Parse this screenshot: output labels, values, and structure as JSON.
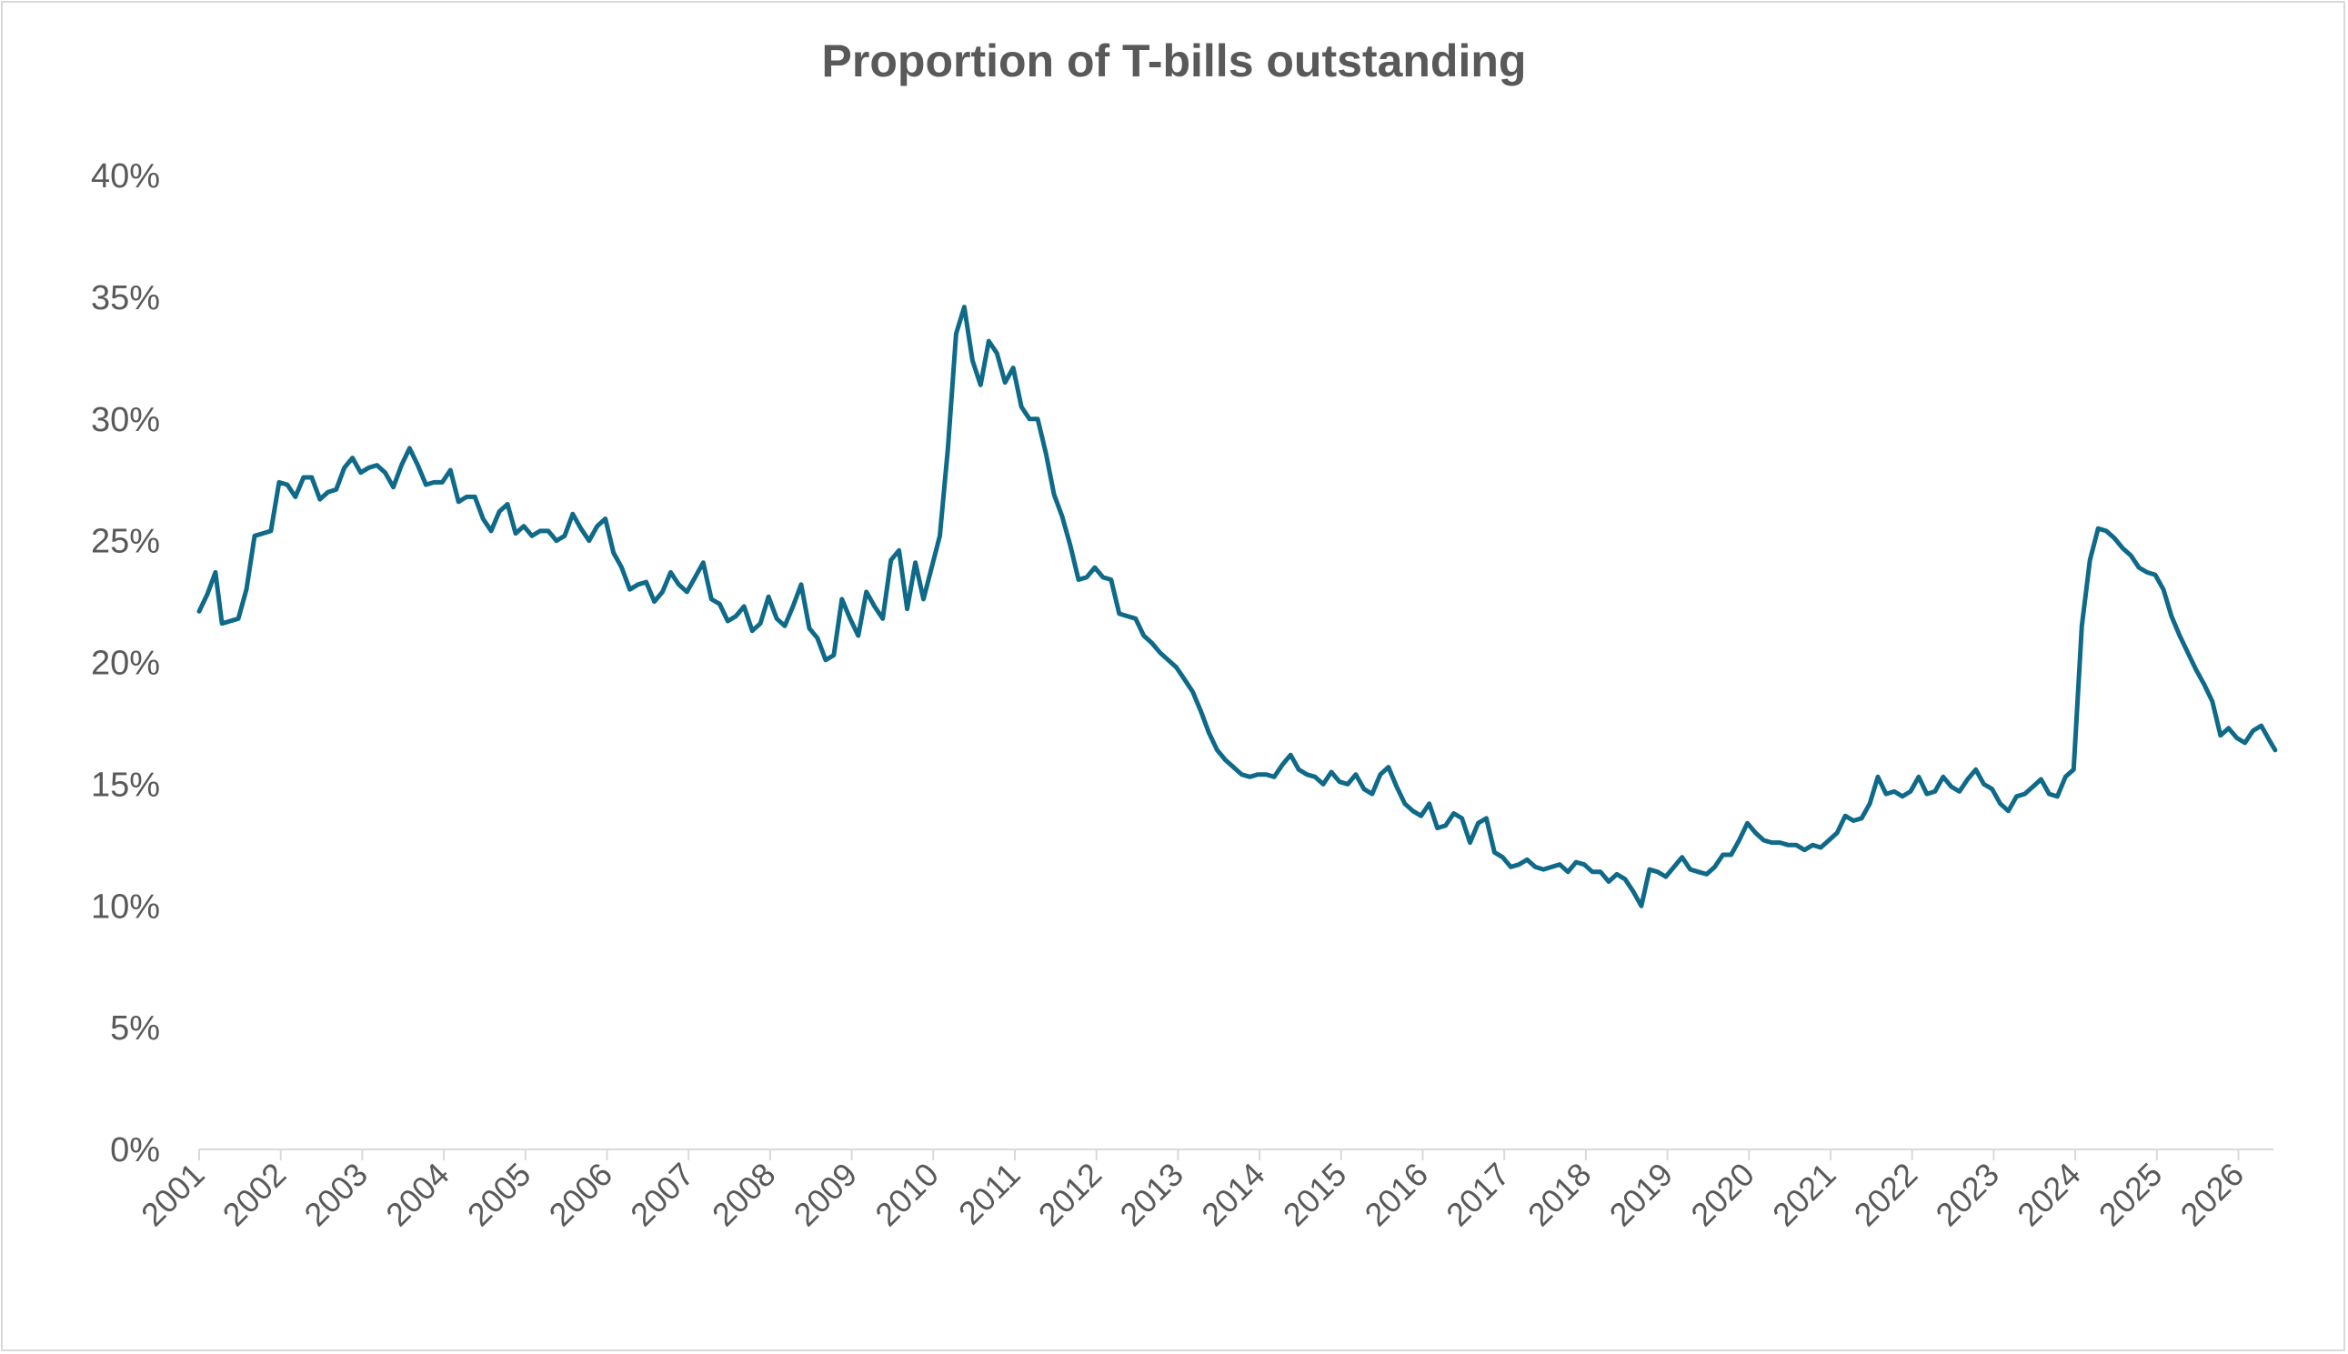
{
  "chart_data": {
    "type": "line",
    "title": "Proportion of T-bills outstanding",
    "xlabel": "",
    "ylabel": "",
    "ylim": [
      0,
      40
    ],
    "xlim": [
      2001.0,
      2026.45
    ],
    "y_ticks": [
      "0%",
      "5%",
      "10%",
      "15%",
      "20%",
      "25%",
      "30%",
      "35%",
      "40%"
    ],
    "x_ticks": [
      "2001",
      "2002",
      "2003",
      "2004",
      "2005",
      "2006",
      "2007",
      "2008",
      "2009",
      "2010",
      "2011",
      "2012",
      "2013",
      "2014",
      "2015",
      "2016",
      "2017",
      "2018",
      "2019",
      "2020",
      "2021",
      "2022",
      "2023",
      "2024",
      "2025",
      "2026"
    ],
    "grid": false,
    "legend": "none",
    "series": [
      {
        "color": "#0e6a88",
        "points": [
          [
            2001.0,
            22.1
          ],
          [
            2001.1,
            22.8
          ],
          [
            2001.2,
            23.7
          ],
          [
            2001.28,
            21.6
          ],
          [
            2001.38,
            21.7
          ],
          [
            2001.48,
            21.8
          ],
          [
            2001.58,
            23.0
          ],
          [
            2001.68,
            25.2
          ],
          [
            2001.78,
            25.3
          ],
          [
            2001.88,
            25.4
          ],
          [
            2001.98,
            27.4
          ],
          [
            2002.08,
            27.3
          ],
          [
            2002.18,
            26.8
          ],
          [
            2002.28,
            27.6
          ],
          [
            2002.38,
            27.6
          ],
          [
            2002.48,
            26.7
          ],
          [
            2002.58,
            27.0
          ],
          [
            2002.68,
            27.1
          ],
          [
            2002.78,
            28.0
          ],
          [
            2002.88,
            28.4
          ],
          [
            2002.98,
            27.8
          ],
          [
            2003.08,
            28.0
          ],
          [
            2003.18,
            28.1
          ],
          [
            2003.28,
            27.8
          ],
          [
            2003.38,
            27.2
          ],
          [
            2003.48,
            28.1
          ],
          [
            2003.58,
            28.8
          ],
          [
            2003.68,
            28.1
          ],
          [
            2003.78,
            27.3
          ],
          [
            2003.88,
            27.4
          ],
          [
            2003.98,
            27.4
          ],
          [
            2004.08,
            27.9
          ],
          [
            2004.18,
            26.6
          ],
          [
            2004.28,
            26.8
          ],
          [
            2004.38,
            26.8
          ],
          [
            2004.48,
            25.9
          ],
          [
            2004.58,
            25.4
          ],
          [
            2004.68,
            26.2
          ],
          [
            2004.78,
            26.5
          ],
          [
            2004.88,
            25.3
          ],
          [
            2004.98,
            25.6
          ],
          [
            2005.08,
            25.2
          ],
          [
            2005.18,
            25.4
          ],
          [
            2005.28,
            25.4
          ],
          [
            2005.38,
            25.0
          ],
          [
            2005.48,
            25.2
          ],
          [
            2005.58,
            26.1
          ],
          [
            2005.68,
            25.5
          ],
          [
            2005.78,
            25.0
          ],
          [
            2005.88,
            25.6
          ],
          [
            2005.98,
            25.9
          ],
          [
            2006.08,
            24.5
          ],
          [
            2006.18,
            23.9
          ],
          [
            2006.28,
            23.0
          ],
          [
            2006.38,
            23.2
          ],
          [
            2006.48,
            23.3
          ],
          [
            2006.58,
            22.5
          ],
          [
            2006.68,
            22.9
          ],
          [
            2006.78,
            23.7
          ],
          [
            2006.88,
            23.2
          ],
          [
            2006.98,
            22.9
          ],
          [
            2007.08,
            23.5
          ],
          [
            2007.18,
            24.1
          ],
          [
            2007.28,
            22.6
          ],
          [
            2007.38,
            22.4
          ],
          [
            2007.48,
            21.7
          ],
          [
            2007.58,
            21.9
          ],
          [
            2007.68,
            22.3
          ],
          [
            2007.78,
            21.3
          ],
          [
            2007.88,
            21.6
          ],
          [
            2007.98,
            22.7
          ],
          [
            2008.08,
            21.8
          ],
          [
            2008.18,
            21.5
          ],
          [
            2008.28,
            22.3
          ],
          [
            2008.38,
            23.2
          ],
          [
            2008.48,
            21.4
          ],
          [
            2008.58,
            21.0
          ],
          [
            2008.68,
            20.1
          ],
          [
            2008.78,
            20.3
          ],
          [
            2008.88,
            22.6
          ],
          [
            2008.98,
            21.8
          ],
          [
            2009.08,
            21.1
          ],
          [
            2009.18,
            22.9
          ],
          [
            2009.28,
            22.3
          ],
          [
            2009.38,
            21.8
          ],
          [
            2009.48,
            24.2
          ],
          [
            2009.58,
            24.6
          ],
          [
            2009.68,
            22.2
          ],
          [
            2009.78,
            24.1
          ],
          [
            2009.88,
            22.6
          ],
          [
            2009.98,
            23.9
          ],
          [
            2010.08,
            25.2
          ],
          [
            2010.18,
            28.8
          ],
          [
            2010.28,
            33.5
          ],
          [
            2010.38,
            34.6
          ],
          [
            2010.48,
            32.4
          ],
          [
            2010.58,
            31.4
          ],
          [
            2010.68,
            33.2
          ],
          [
            2010.78,
            32.7
          ],
          [
            2010.88,
            31.5
          ],
          [
            2010.98,
            32.1
          ],
          [
            2011.08,
            30.5
          ],
          [
            2011.18,
            30.0
          ],
          [
            2011.28,
            30.0
          ],
          [
            2011.38,
            28.6
          ],
          [
            2011.48,
            26.9
          ],
          [
            2011.58,
            26.0
          ],
          [
            2011.68,
            24.8
          ],
          [
            2011.78,
            23.4
          ],
          [
            2011.88,
            23.5
          ],
          [
            2011.98,
            23.9
          ],
          [
            2012.08,
            23.5
          ],
          [
            2012.18,
            23.4
          ],
          [
            2012.28,
            22.0
          ],
          [
            2012.38,
            21.9
          ],
          [
            2012.48,
            21.8
          ],
          [
            2012.58,
            21.1
          ],
          [
            2012.68,
            20.8
          ],
          [
            2012.78,
            20.4
          ],
          [
            2012.88,
            20.1
          ],
          [
            2012.98,
            19.8
          ],
          [
            2013.08,
            19.3
          ],
          [
            2013.18,
            18.8
          ],
          [
            2013.28,
            18.0
          ],
          [
            2013.38,
            17.1
          ],
          [
            2013.48,
            16.4
          ],
          [
            2013.58,
            16.0
          ],
          [
            2013.68,
            15.7
          ],
          [
            2013.78,
            15.4
          ],
          [
            2013.88,
            15.3
          ],
          [
            2013.98,
            15.4
          ],
          [
            2014.08,
            15.4
          ],
          [
            2014.18,
            15.3
          ],
          [
            2014.28,
            15.8
          ],
          [
            2014.38,
            16.2
          ],
          [
            2014.48,
            15.6
          ],
          [
            2014.58,
            15.4
          ],
          [
            2014.68,
            15.3
          ],
          [
            2014.78,
            15.0
          ],
          [
            2014.88,
            15.5
          ],
          [
            2014.98,
            15.1
          ],
          [
            2015.08,
            15.0
          ],
          [
            2015.18,
            15.4
          ],
          [
            2015.28,
            14.8
          ],
          [
            2015.38,
            14.6
          ],
          [
            2015.48,
            15.4
          ],
          [
            2015.58,
            15.7
          ],
          [
            2015.68,
            14.9
          ],
          [
            2015.78,
            14.2
          ],
          [
            2015.88,
            13.9
          ],
          [
            2015.98,
            13.7
          ],
          [
            2016.08,
            14.2
          ],
          [
            2016.18,
            13.2
          ],
          [
            2016.28,
            13.3
          ],
          [
            2016.38,
            13.8
          ],
          [
            2016.48,
            13.6
          ],
          [
            2016.58,
            12.6
          ],
          [
            2016.68,
            13.4
          ],
          [
            2016.78,
            13.6
          ],
          [
            2016.88,
            12.2
          ],
          [
            2016.98,
            12.0
          ],
          [
            2017.08,
            11.6
          ],
          [
            2017.18,
            11.7
          ],
          [
            2017.28,
            11.9
          ],
          [
            2017.38,
            11.6
          ],
          [
            2017.48,
            11.5
          ],
          [
            2017.58,
            11.6
          ],
          [
            2017.68,
            11.7
          ],
          [
            2017.78,
            11.4
          ],
          [
            2017.88,
            11.8
          ],
          [
            2017.98,
            11.7
          ],
          [
            2018.08,
            11.4
          ],
          [
            2018.18,
            11.4
          ],
          [
            2018.28,
            11.0
          ],
          [
            2018.38,
            11.3
          ],
          [
            2018.48,
            11.1
          ],
          [
            2018.58,
            10.6
          ],
          [
            2018.68,
            10.0
          ],
          [
            2018.78,
            11.5
          ],
          [
            2018.88,
            11.4
          ],
          [
            2018.98,
            11.2
          ],
          [
            2019.08,
            11.6
          ],
          [
            2019.18,
            12.0
          ],
          [
            2019.28,
            11.5
          ],
          [
            2019.38,
            11.4
          ],
          [
            2019.48,
            11.3
          ],
          [
            2019.58,
            11.6
          ],
          [
            2019.68,
            12.1
          ],
          [
            2019.78,
            12.1
          ],
          [
            2019.88,
            12.7
          ],
          [
            2019.98,
            13.4
          ],
          [
            2020.08,
            13.0
          ],
          [
            2020.18,
            12.7
          ],
          [
            2020.28,
            12.6
          ],
          [
            2020.38,
            12.6
          ],
          [
            2020.48,
            12.5
          ],
          [
            2020.58,
            12.5
          ],
          [
            2020.68,
            12.3
          ],
          [
            2020.78,
            12.5
          ],
          [
            2020.88,
            12.4
          ],
          [
            2020.98,
            12.7
          ],
          [
            2021.08,
            13.0
          ],
          [
            2021.18,
            13.7
          ],
          [
            2021.28,
            13.5
          ],
          [
            2021.38,
            13.6
          ],
          [
            2021.48,
            14.2
          ],
          [
            2021.58,
            15.3
          ],
          [
            2021.68,
            14.6
          ],
          [
            2021.78,
            14.7
          ],
          [
            2021.88,
            14.5
          ],
          [
            2021.98,
            14.7
          ],
          [
            2022.08,
            15.3
          ],
          [
            2022.18,
            14.6
          ],
          [
            2022.28,
            14.7
          ],
          [
            2022.38,
            15.3
          ],
          [
            2022.48,
            14.9
          ],
          [
            2022.58,
            14.7
          ],
          [
            2022.68,
            15.2
          ],
          [
            2022.78,
            15.6
          ],
          [
            2022.88,
            15.0
          ],
          [
            2022.98,
            14.8
          ],
          [
            2023.08,
            14.2
          ],
          [
            2023.18,
            13.9
          ],
          [
            2023.28,
            14.5
          ],
          [
            2023.38,
            14.6
          ],
          [
            2023.48,
            14.9
          ],
          [
            2023.58,
            15.2
          ],
          [
            2023.68,
            14.6
          ],
          [
            2023.78,
            14.5
          ],
          [
            2023.88,
            15.3
          ],
          [
            2023.98,
            15.6
          ],
          [
            2024.08,
            21.5
          ],
          [
            2024.18,
            24.2
          ],
          [
            2024.28,
            25.5
          ],
          [
            2024.38,
            25.4
          ],
          [
            2024.48,
            25.1
          ],
          [
            2024.58,
            24.7
          ],
          [
            2024.68,
            24.4
          ],
          [
            2024.78,
            23.9
          ],
          [
            2024.88,
            23.7
          ],
          [
            2024.98,
            23.6
          ],
          [
            2025.08,
            23.0
          ],
          [
            2025.18,
            21.9
          ],
          [
            2025.28,
            21.1
          ],
          [
            2025.38,
            20.4
          ],
          [
            2025.48,
            19.7
          ],
          [
            2025.58,
            19.1
          ],
          [
            2025.68,
            18.4
          ],
          [
            2025.78,
            17.0
          ],
          [
            2025.88,
            17.3
          ],
          [
            2025.98,
            16.9
          ],
          [
            2026.08,
            16.7
          ],
          [
            2026.18,
            17.2
          ],
          [
            2026.28,
            17.4
          ],
          [
            2026.38,
            16.8
          ],
          [
            2026.45,
            16.4
          ]
        ]
      }
    ]
  }
}
